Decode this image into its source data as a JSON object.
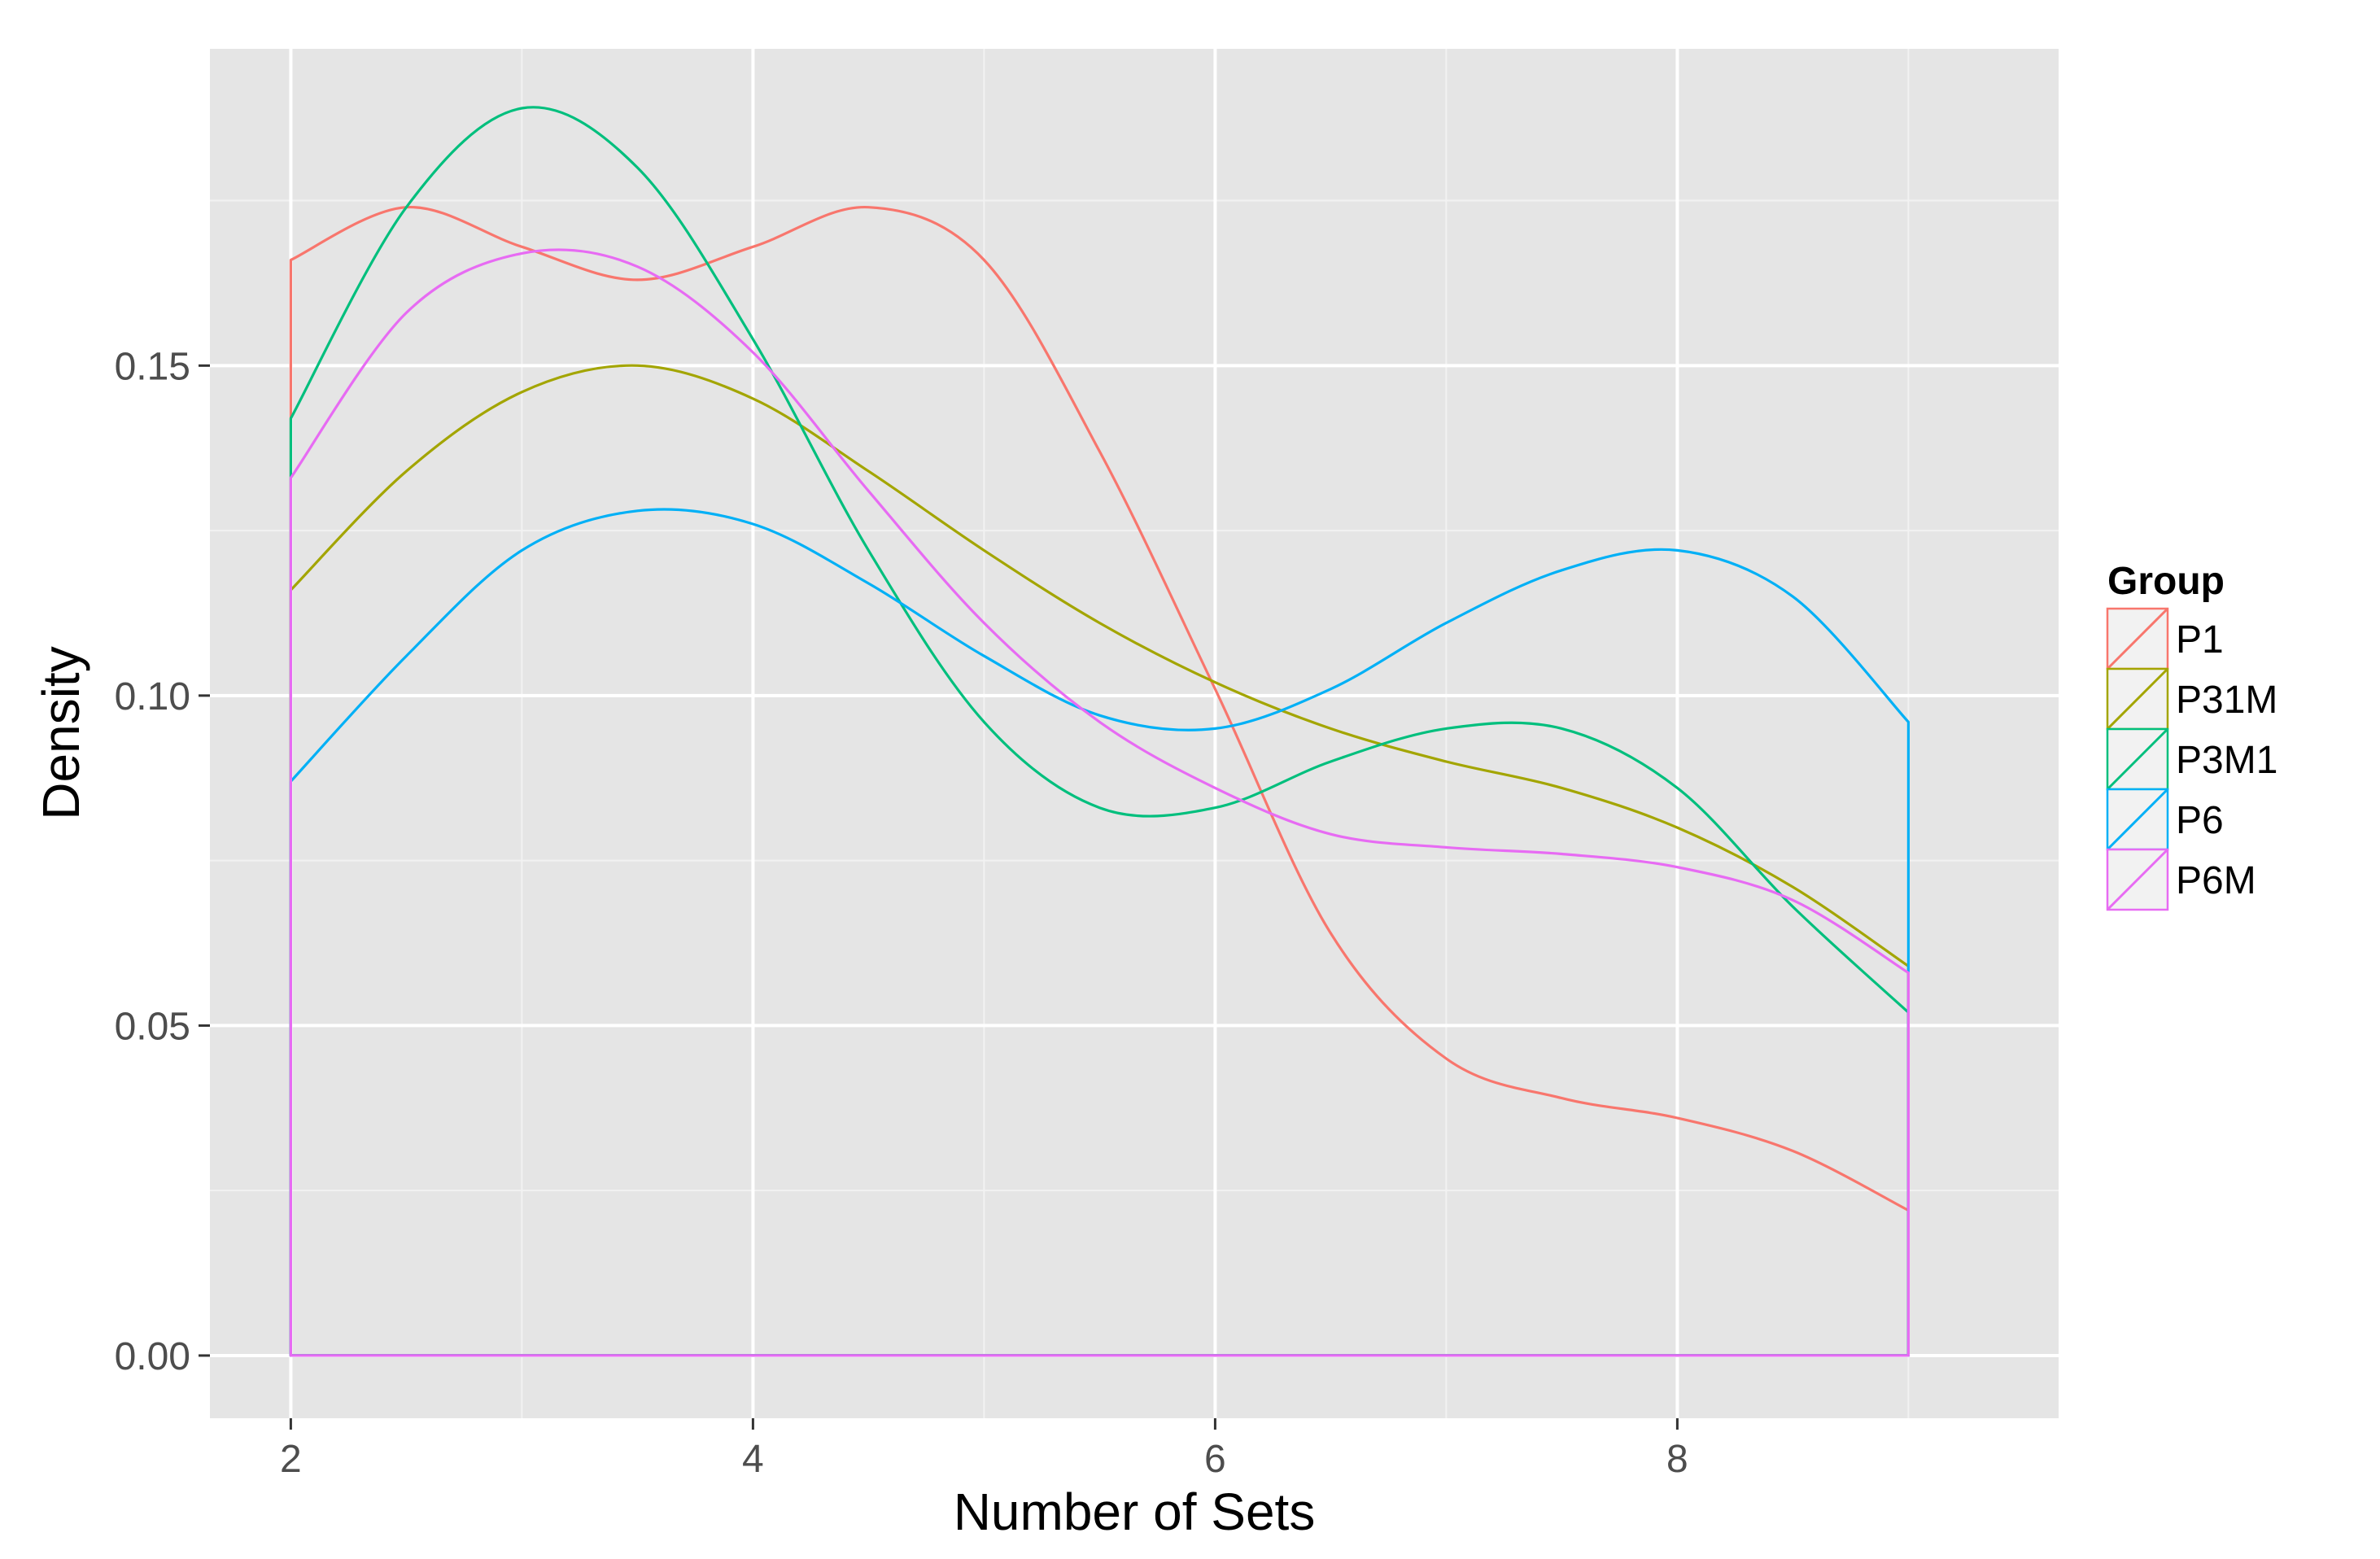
{
  "chart_data": {
    "type": "line",
    "xlabel": "Number of Sets",
    "ylabel": "Density",
    "xlim": [
      1.65,
      9.65
    ],
    "ylim": [
      -0.0095,
      0.198
    ],
    "x_ticks": [
      2,
      4,
      6,
      8
    ],
    "x_tick_labels": [
      "2",
      "4",
      "6",
      "8"
    ],
    "x_minor_ticks": [
      3,
      5,
      7,
      9
    ],
    "y_ticks": [
      0.0,
      0.05,
      0.1,
      0.15
    ],
    "y_tick_labels": [
      "0.00",
      "0.05",
      "0.10",
      "0.15"
    ],
    "y_minor_ticks": [
      0.025,
      0.075,
      0.125,
      0.175
    ],
    "grid": true,
    "background": "#e5e5e5",
    "legend": {
      "title": "Group",
      "position": "right"
    },
    "x": [
      2,
      2.5,
      3,
      3.5,
      4,
      4.5,
      5,
      5.5,
      6,
      6.5,
      7,
      7.5,
      8,
      8.5,
      9
    ],
    "series": [
      {
        "name": "P1",
        "color": "#f8766d",
        "values": [
          0.166,
          0.174,
          0.168,
          0.163,
          0.168,
          0.174,
          0.166,
          0.137,
          0.101,
          0.064,
          0.045,
          0.039,
          0.036,
          0.031,
          0.022
        ]
      },
      {
        "name": "P31M",
        "color": "#a3a500",
        "values": [
          0.116,
          0.134,
          0.146,
          0.15,
          0.145,
          0.134,
          0.122,
          0.111,
          0.102,
          0.095,
          0.09,
          0.086,
          0.08,
          0.071,
          0.059
        ]
      },
      {
        "name": "P3M1",
        "color": "#00bf7d",
        "values": [
          0.142,
          0.174,
          0.189,
          0.18,
          0.154,
          0.122,
          0.096,
          0.083,
          0.083,
          0.09,
          0.095,
          0.095,
          0.086,
          0.068,
          0.052
        ]
      },
      {
        "name": "P6",
        "color": "#00b0f6",
        "values": [
          0.087,
          0.106,
          0.122,
          0.128,
          0.126,
          0.117,
          0.106,
          0.097,
          0.095,
          0.101,
          0.111,
          0.119,
          0.122,
          0.115,
          0.096
        ]
      },
      {
        "name": "P6M",
        "color": "#e76bf3",
        "values": [
          0.133,
          0.158,
          0.167,
          0.165,
          0.152,
          0.131,
          0.111,
          0.096,
          0.086,
          0.079,
          0.077,
          0.076,
          0.074,
          0.069,
          0.058
        ]
      }
    ]
  }
}
